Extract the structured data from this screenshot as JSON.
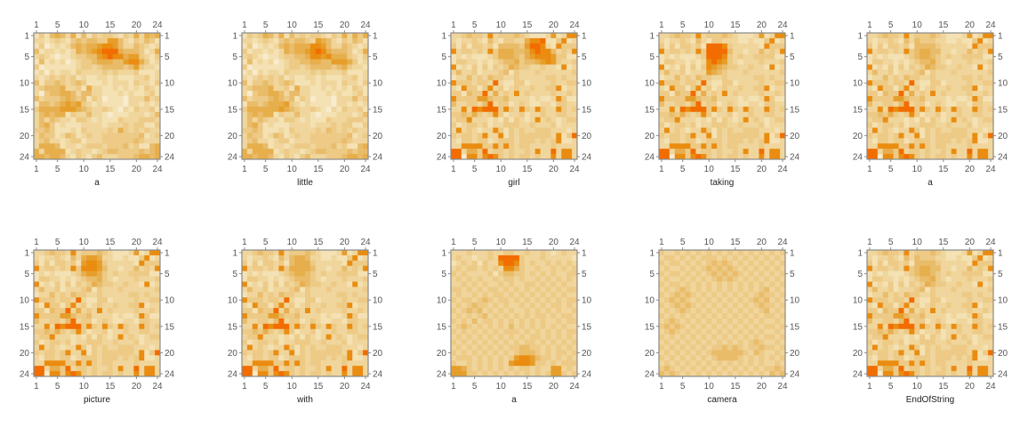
{
  "chart_data": {
    "type": "heatmap",
    "title": "",
    "xlabel": "",
    "ylabel": "",
    "grid": false,
    "rows": 24,
    "cols": 24,
    "ticks": [
      1,
      5,
      10,
      15,
      20,
      24
    ],
    "value_scale": "0 (pale cream) to 9 (bright orange)",
    "vmin": 0,
    "vmax": 9,
    "palette": [
      "#fcf5e3",
      "#f8ecce",
      "#f4e2b4",
      "#f0d69c",
      "#edca86",
      "#e9bc6a",
      "#e7ae4c",
      "#e69e2a",
      "#ea8c10",
      "#f26c00"
    ],
    "panels": [
      {
        "label": "a",
        "matrix": [
          "242565362524344324363656",
          "332343245455447753243542",
          "241232356566788753354323",
          "523323236567899965554236",
          "343212234455789886774324",
          "252323123445666557886423",
          "412222223443455554574332",
          "231323324333343433342223",
          "323434342322332322233423",
          "524454345422232333243324",
          "345556334263322323232432",
          "314556653553322232322342",
          "534445654524312221333534",
          "255456767432322221332323",
          "466667776543343213243342",
          "356566243353321222333235",
          "353543324432322243334443",
          "356423222333323334344224",
          "445422232433334364343433",
          "354423542343344444445234",
          "345332344233344444454333",
          "366652332344434445342256",
          "636666234332345544445456",
          "665665324324533344456656"
        ]
      },
      {
        "label": "little",
        "matrix": [
          "243465362534344324363646",
          "332343245455437653243542",
          "241232356566688753354323",
          "423323236566789865554236",
          "343212234455688786664324",
          "252323123445566557776423",
          "412222223443455554564332",
          "231323324333343433342223",
          "323434342322332322233423",
          "524454345422232333243324",
          "345556334263322323232432",
          "314556653553322232322342",
          "534445654524312221333534",
          "255456667432322221332323",
          "466666676543343213243342",
          "356566243353321222333235",
          "353543324432322243334443",
          "356423222333323334344224",
          "445422232433334354343433",
          "354423542343344444445234",
          "345332344233344444454333",
          "366652332344434445342256",
          "636666234332345544445455",
          "665665324324533344456656"
        ]
      },
      {
        "label": "girl",
        "matrix": [
          "334544383444543222372388",
          "323343253244336889224823",
          "424244342555547998328444",
          "834434384666556898853438",
          "232322234666546788874422",
          "244332323455645567874334",
          "823242424346544334332823",
          "353342333452433343333334",
          "233534354433433333443433",
          "844434439322442333343344",
          "328442483423433433448233",
          "442544936343834333343343",
          "844447754453333232238422",
          "533443593442343223324433",
          "338398999484384384338434",
          "445464348423342334334433",
          "344833323242432383432344",
          "423443423344433433342333",
          "383432338424343344433323",
          "434434833824344444438249",
          "324434423444344434348223",
          "338888448484344333343333",
          "993664934434334383393883",
          "991884898434344343383883"
        ]
      },
      {
        "label": "taking",
        "matrix": [
          "334544383444543222372388",
          "323343253244333223224823",
          "424244342999843333328444",
          "834434384999953323353438",
          "232322234999843433444422",
          "244332323898743233343334",
          "823242424876544334332823",
          "353342333765433343333334",
          "233534354433433333443433",
          "844434439322442333343344",
          "328442483423433433448233",
          "442544936343834333343343",
          "844447754453333232238422",
          "533443593442343223324433",
          "338398999484384384338434",
          "445464348423342334334433",
          "344833323242432383432344",
          "423443423344433433342333",
          "383432338424343344433323",
          "434434833824344444438249",
          "324434423444344434348223",
          "338888448484344333343333",
          "993664934434334383393883",
          "991884898434344343383883"
        ]
      },
      {
        "label": "a",
        "matrix": [
          "334544383444543222372388",
          "323343253544433223224823",
          "424244342555543333328444",
          "834434384566553323353438",
          "232322234566543433444422",
          "244332323455643233343334",
          "823242424346544334332823",
          "353342333452433343333334",
          "233534354433433333443433",
          "844434439322442333343344",
          "328442483423433433448233",
          "442544936343834333343343",
          "844447754453333232238422",
          "533443593442343223324433",
          "338398999484384384338434",
          "445464348423342334334433",
          "344833323242432383432344",
          "423443423344433433342333",
          "383432338424343344433323",
          "434434833824344444438249",
          "324434423444344434348223",
          "338888448484344333343333",
          "993664934434334383393883",
          "991884898434344343383883"
        ]
      },
      {
        "label": "picture",
        "matrix": [
          "334544383444543222372388",
          "323343253677633223224823",
          "424244342788743333328444",
          "834434384888753323353438",
          "232322234677643433444422",
          "244332323455643233343334",
          "823242424346544334332823",
          "353342333452433343333334",
          "233534354433433333443433",
          "844434439322442333343344",
          "328442483423433433448233",
          "442544936343834333343343",
          "844447754453333232238422",
          "533443593442343223324433",
          "338398999484384384338434",
          "445464348423342334334433",
          "344833323242432383432344",
          "423443423344433433342333",
          "383432338424343344433323",
          "434434833824344444438249",
          "324434423444344434348223",
          "338888448484344333343333",
          "993664934434334383393883",
          "991884898434344343383883"
        ]
      },
      {
        "label": "with",
        "matrix": [
          "334544383444543222372388",
          "323343253566533223224823",
          "424244342566643333328444",
          "834434384666653323353438",
          "232322234566543433444422",
          "244332323455543233343334",
          "823242424346544334332823",
          "353342333452433343333334",
          "233534354433433333443433",
          "844434439322442333343344",
          "328442483423433433448233",
          "442544936343834333343343",
          "844447754453333232238422",
          "533443593442343223324433",
          "338398999484384384338434",
          "445464348423342334334433",
          "344833323242432383432344",
          "423443423344433433342333",
          "383432338424343344433323",
          "434434833824344444438249",
          "324434423444344434348223",
          "338888448484344333343333",
          "993664934434334383393883",
          "991884898434344343383883"
        ]
      },
      {
        "label": "a",
        "matrix": [
          "333433343344334334323433",
          "343323343999943334333332",
          "234342433899843433434343",
          "343443434388643343343434",
          "434333342455443434343344",
          "343434334344343343434343",
          "334343433434334434343433",
          "443434344343434343434344",
          "343343434434343434343433",
          "434434543443434343434344",
          "343454434343343434344343",
          "434545343434334343434334",
          "343434534343434344343443",
          "434353443434343434334344",
          "345434343435343434343433",
          "434343434344434343434344",
          "343434343434343443434343",
          "434343434343434434343434",
          "343434343434455443434343",
          "434343434343455543434434",
          "344434343434788754434343",
          "433434343437888744343444",
          "776434343434344343377343",
          "777443434343434343477434"
        ]
      },
      {
        "label": "camera",
        "matrix": [
          "433434343434343434343434",
          "344343434443434343434343",
          "434434343454543434343434",
          "343343434545454343434343",
          "434434343454545434343434",
          "343343434345454343434343",
          "434434343434343434343434",
          "343454343434343434345343",
          "434545434343434343454434",
          "345454343434343434545343",
          "434545434343434343454434",
          "343454343434343434345343",
          "434343434343434343434434",
          "345434343434343434343343",
          "454543434343434343434434",
          "345434343434343434343343",
          "434343434343434343434434",
          "343434343434343434543343",
          "434343434344545434454434",
          "343434343455555543543343",
          "434343434345555434343434",
          "343434343434343434343343",
          "454343434343434343434454",
          "545434343434343434343545"
        ]
      },
      {
        "label": "EndOfString",
        "matrix": [
          "334544383444543222372388",
          "323343253544433223224823",
          "424244342555543333328444",
          "834434384566553323353438",
          "232322234566543433444422",
          "244332323455643233343334",
          "823242424346544334332823",
          "353342333452433343333334",
          "233534354433433333443433",
          "844434439322442333343344",
          "328442483423433433448233",
          "442544936343834333343343",
          "844447754453333232238422",
          "533443593442343223324433",
          "338398999484384384338434",
          "445464348423342334334433",
          "344833323242432383432344",
          "423443423344433433342333",
          "383432338424343344433323",
          "434434833824344444438249",
          "324434423444344434348223",
          "338888448484344333343333",
          "993664934434334383393883",
          "991884898434344343383883"
        ]
      }
    ]
  }
}
